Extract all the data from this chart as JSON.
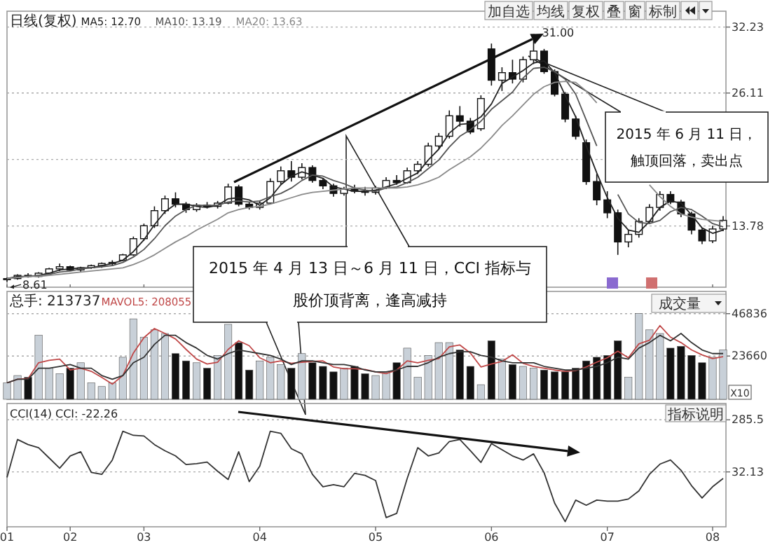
{
  "chart_data": [
    {
      "type": "candlestick",
      "title": "日线(复权)",
      "legend": "top left",
      "grid": "y",
      "tick_labels": "y",
      "categories": [
        "01",
        null,
        null,
        null,
        null,
        null,
        "02",
        null,
        null,
        null,
        null,
        null,
        null,
        "03",
        null,
        null,
        null,
        null,
        null,
        null,
        null,
        null,
        null,
        null,
        "04",
        null,
        null,
        null,
        null,
        null,
        null,
        null,
        null,
        null,
        null,
        "05",
        null,
        null,
        null,
        null,
        null,
        null,
        null,
        null,
        null,
        null,
        "06",
        null,
        null,
        null,
        null,
        null,
        null,
        null,
        null,
        null,
        null,
        "07",
        null,
        null,
        null,
        null,
        null,
        null,
        null,
        null,
        null,
        "08",
        null
      ],
      "ylim": [
        8.1,
        33.7
      ],
      "yticks": [
        32.23,
        26.11,
        {
          "value": 19.95,
          "label": null
        },
        13.78
      ],
      "ohlc": [
        [
          8.8,
          9.0,
          8.61,
          8.9
        ],
        [
          8.9,
          9.3,
          8.8,
          9.2
        ],
        [
          9.2,
          9.4,
          9.0,
          9.1
        ],
        [
          9.1,
          9.5,
          9.0,
          9.4
        ],
        [
          9.4,
          9.9,
          9.3,
          9.8
        ],
        [
          9.8,
          10.3,
          9.6,
          10.0
        ],
        [
          10.0,
          10.1,
          9.6,
          9.7
        ],
        [
          9.7,
          10.0,
          9.5,
          9.9
        ],
        [
          9.9,
          10.2,
          9.8,
          10.1
        ],
        [
          10.1,
          10.4,
          9.9,
          10.3
        ],
        [
          10.3,
          10.6,
          10.1,
          10.4
        ],
        [
          10.6,
          11.2,
          10.5,
          11.1
        ],
        [
          11.1,
          12.8,
          11.0,
          12.6
        ],
        [
          12.6,
          14.0,
          12.4,
          13.8
        ],
        [
          13.8,
          15.6,
          13.6,
          15.2
        ],
        [
          15.2,
          16.6,
          14.9,
          16.3
        ],
        [
          16.3,
          16.9,
          15.5,
          15.8
        ],
        [
          15.8,
          16.0,
          15.0,
          15.3
        ],
        [
          15.3,
          15.9,
          15.1,
          15.7
        ],
        [
          15.7,
          16.0,
          15.4,
          15.6
        ],
        [
          15.6,
          16.1,
          15.4,
          15.9
        ],
        [
          15.9,
          17.7,
          15.8,
          17.4
        ],
        [
          17.4,
          17.6,
          15.6,
          15.8
        ],
        [
          15.8,
          16.0,
          15.3,
          15.5
        ],
        [
          15.5,
          16.1,
          15.3,
          15.9
        ],
        [
          15.9,
          18.2,
          15.8,
          17.9
        ],
        [
          17.9,
          19.3,
          17.6,
          18.9
        ],
        [
          18.9,
          19.8,
          17.9,
          18.3
        ],
        [
          18.3,
          19.6,
          18.1,
          19.2
        ],
        [
          19.2,
          19.4,
          17.8,
          18.0
        ],
        [
          18.0,
          18.2,
          17.2,
          17.5
        ],
        [
          17.5,
          17.7,
          16.5,
          16.8
        ],
        [
          16.8,
          17.4,
          16.6,
          17.2
        ],
        [
          17.2,
          17.6,
          16.8,
          17.0
        ],
        [
          17.0,
          17.4,
          16.6,
          16.9
        ],
        [
          16.9,
          17.5,
          16.7,
          17.3
        ],
        [
          17.3,
          18.3,
          17.2,
          18.0
        ],
        [
          18.0,
          18.5,
          17.6,
          17.8
        ],
        [
          17.8,
          19.2,
          17.7,
          18.9
        ],
        [
          18.9,
          19.8,
          18.6,
          19.5
        ],
        [
          19.5,
          21.5,
          19.3,
          21.2
        ],
        [
          21.2,
          22.4,
          20.9,
          22.1
        ],
        [
          22.1,
          24.5,
          21.9,
          24.0
        ],
        [
          24.0,
          24.9,
          23.0,
          23.5
        ],
        [
          23.5,
          23.8,
          22.3,
          22.5
        ],
        [
          22.8,
          25.9,
          22.6,
          25.6
        ],
        [
          30.2,
          30.7,
          26.8,
          27.3
        ],
        [
          27.3,
          28.5,
          26.3,
          28.0
        ],
        [
          28.0,
          29.2,
          27.0,
          27.4
        ],
        [
          27.4,
          29.5,
          27.1,
          29.2
        ],
        [
          29.2,
          31.0,
          28.8,
          30.0
        ],
        [
          30.0,
          30.2,
          27.9,
          28.1
        ],
        [
          28.1,
          28.3,
          25.8,
          26.0
        ],
        [
          26.0,
          26.2,
          23.4,
          23.7
        ],
        [
          23.7,
          24.0,
          21.8,
          22.1
        ],
        [
          21.5,
          21.8,
          17.6,
          17.9
        ],
        [
          17.9,
          18.6,
          15.7,
          16.2
        ],
        [
          16.2,
          17.0,
          14.5,
          15.0
        ],
        [
          15.0,
          15.3,
          11.1,
          12.3
        ],
        [
          12.3,
          13.4,
          11.8,
          13.0
        ],
        [
          13.0,
          14.5,
          12.7,
          14.2
        ],
        [
          14.2,
          15.8,
          14.0,
          15.5
        ],
        [
          15.5,
          17.0,
          15.2,
          16.7
        ],
        [
          16.7,
          17.0,
          15.8,
          16.0
        ],
        [
          16.0,
          16.2,
          14.6,
          14.9
        ],
        [
          14.9,
          15.1,
          13.0,
          13.4
        ],
        [
          13.4,
          13.6,
          12.1,
          12.4
        ],
        [
          12.4,
          13.8,
          12.2,
          13.5
        ],
        [
          13.5,
          14.7,
          13.3,
          14.3
        ]
      ],
      "series": [
        {
          "type": "line",
          "name": "MA5: 12.70",
          "color": "#222222",
          "values": [
            8.9,
            9.1,
            9.1,
            9.2,
            9.4,
            9.7,
            9.8,
            9.9,
            9.9,
            10.1,
            10.3,
            10.6,
            11.4,
            12.5,
            13.9,
            15.1,
            15.8,
            15.8,
            15.6,
            15.5,
            15.7,
            16.3,
            16.4,
            16.2,
            15.7,
            16.4,
            17.6,
            18.4,
            18.8,
            18.5,
            18.2,
            17.4,
            17.2,
            17.0,
            17.0,
            17.1,
            17.4,
            17.7,
            18.2,
            18.7,
            19.9,
            20.9,
            22.4,
            23.2,
            23.3,
            23.9,
            25.1,
            27.0,
            27.6,
            28.2,
            28.9,
            29.1,
            28.0,
            25.9,
            23.9,
            21.2,
            18.7,
            16.4,
            14.5,
            13.4,
            13.2,
            14.2,
            15.5,
            16.1,
            15.9,
            14.8,
            13.6,
            13.1,
            13.4
          ]
        },
        {
          "type": "line",
          "name": "MA10: 13.19",
          "color": "#555555",
          "values": [
            8.9,
            9.0,
            9.1,
            9.2,
            9.3,
            9.5,
            9.6,
            9.8,
            9.9,
            10.0,
            10.1,
            10.4,
            10.9,
            11.6,
            12.6,
            13.8,
            14.7,
            15.3,
            15.7,
            15.7,
            15.7,
            16.0,
            16.1,
            16.0,
            16.1,
            16.5,
            16.8,
            17.3,
            18.0,
            18.5,
            18.4,
            18.0,
            17.7,
            17.3,
            17.1,
            17.0,
            17.3,
            17.4,
            17.8,
            18.3,
            19.1,
            19.9,
            21.1,
            22.1,
            22.7,
            23.5,
            24.6,
            25.4,
            26.2,
            27.5,
            28.4,
            28.5,
            28.1,
            27.4,
            26.0,
            23.6,
            21.2,
            null,
            16.7,
            14.9,
            14.1,
            14.0,
            14.3,
            15.1,
            15.5,
            15.3,
            14.7,
            14.0,
            13.7
          ]
        },
        {
          "type": "line",
          "name": "MA20: 13.63",
          "color": "#8a8a8a",
          "values": [
            8.9,
            9.0,
            9.1,
            9.1,
            9.2,
            9.3,
            9.4,
            9.5,
            9.6,
            9.7,
            9.8,
            9.9,
            10.2,
            10.6,
            11.1,
            11.7,
            12.3,
            12.8,
            13.4,
            13.9,
            14.4,
            15.0,
            15.3,
            15.5,
            15.6,
            15.8,
            16.1,
            16.4,
            16.7,
            16.9,
            17.0,
            17.1,
            17.2,
            17.3,
            17.3,
            17.3,
            17.3,
            17.3,
            17.4,
            17.6,
            17.9,
            18.3,
            19.0,
            19.6,
            20.2,
            21.0,
            22.0,
            23.1,
            24.0,
            25.0,
            26.0,
            26.7,
            27.1,
            27.2,
            27.1,
            26.3,
            25.2,
            null,
            null,
            null,
            null,
            17.6,
            16.5,
            15.6,
            14.9,
            14.6,
            14.4,
            14.3,
            14.2
          ]
        }
      ],
      "annotations": [
        "加自选",
        "均线",
        "复权",
        "叠",
        "窗",
        "标制",
        "2015 年 6 月 11 日，触顶回落，卖出点",
        "2015 年 4 月 13 日～6 月 11 日，CCI 指标与股价顶背离，逢高减持",
        "31.00",
        "8.61"
      ]
    },
    {
      "type": "bar",
      "title": "总手: 213737",
      "legend": "top left",
      "grid": "y",
      "tick_labels": "y",
      "categories": [
        "01",
        null,
        null,
        null,
        null,
        null,
        "02",
        null,
        null,
        null,
        null,
        null,
        null,
        "03",
        null,
        null,
        null,
        null,
        null,
        null,
        null,
        null,
        null,
        null,
        "04",
        null,
        null,
        null,
        null,
        null,
        null,
        null,
        null,
        null,
        null,
        "05",
        null,
        null,
        null,
        null,
        null,
        null,
        null,
        null,
        null,
        null,
        "06",
        null,
        null,
        null,
        null,
        null,
        null,
        null,
        null,
        null,
        null,
        "07",
        null,
        null,
        null,
        null,
        null,
        null,
        null,
        null,
        null,
        "08",
        null
      ],
      "ylim": [
        0,
        59000
      ],
      "yticks": [
        46836,
        23660
      ],
      "values": [
        9000,
        13000,
        12000,
        35000,
        17000,
        14000,
        17000,
        20000,
        9000,
        7000,
        9000,
        23000,
        44000,
        34000,
        38000,
        36000,
        25000,
        21000,
        20000,
        17000,
        24000,
        41000,
        31000,
        16000,
        21000,
        23000,
        19000,
        17000,
        25000,
        20000,
        18000,
        15000,
        17000,
        18000,
        14000,
        13000,
        15000,
        20000,
        28000,
        12000,
        24000,
        31000,
        31000,
        27000,
        18000,
        8000,
        32000,
        22000,
        19000,
        18000,
        17000,
        16000,
        15000,
        15000,
        17000,
        21000,
        23000,
        24000,
        32000,
        12000,
        47000,
        38000,
        36000,
        28000,
        29000,
        24000,
        20000,
        23000,
        27000
      ],
      "colors": [
        "#c8d0d8",
        "#c8d0d8",
        "#111111",
        "#c8d0d8",
        "#c8d0d8",
        "#c8d0d8",
        "#111111",
        "#c8d0d8",
        "#c8d0d8",
        "#c8d0d8",
        "#c8d0d8",
        "#c8d0d8",
        "#c8d0d8",
        "#c8d0d8",
        "#c8d0d8",
        "#c8d0d8",
        "#111111",
        "#111111",
        "#c8d0d8",
        "#111111",
        "#c8d0d8",
        "#c8d0d8",
        "#111111",
        "#111111",
        "#c8d0d8",
        "#c8d0d8",
        "#c8d0d8",
        "#111111",
        "#c8d0d8",
        "#111111",
        "#111111",
        "#111111",
        "#c8d0d8",
        "#111111",
        "#111111",
        "#c8d0d8",
        "#c8d0d8",
        "#111111",
        "#c8d0d8",
        "#c8d0d8",
        "#c8d0d8",
        "#c8d0d8",
        "#c8d0d8",
        "#111111",
        "#111111",
        "#c8d0d8",
        "#111111",
        "#c8d0d8",
        "#111111",
        "#c8d0d8",
        "#c8d0d8",
        "#111111",
        "#111111",
        "#111111",
        "#111111",
        "#111111",
        "#111111",
        "#111111",
        "#111111",
        "#c8d0d8",
        "#c8d0d8",
        "#c8d0d8",
        "#c8d0d8",
        "#111111",
        "#111111",
        "#111111",
        "#111111",
        "#c8d0d8",
        "#c8d0d8"
      ],
      "series": [
        {
          "type": "line",
          "name": "MAVOL5: 208055",
          "color": "#c04848",
          "values": [
            9000,
            11000,
            11300,
            20000,
            21300,
            22000,
            16000,
            17000,
            15300,
            12000,
            8300,
            13000,
            25300,
            33700,
            38700,
            36000,
            33000,
            27300,
            22000,
            19300,
            20300,
            27300,
            32000,
            29300,
            22700,
            20000,
            21000,
            19700,
            20300,
            20700,
            21000,
            17700,
            16700,
            16700,
            16300,
            15000,
            14000,
            16000,
            21000,
            20000,
            21300,
            22300,
            28700,
            29700,
            25300,
            17700,
            19300,
            20700,
            24300,
            19700,
            18000,
            17000,
            16000,
            15300,
            15700,
            17700,
            20300,
            22700,
            26300,
            22700,
            30300,
            32300,
            40300,
            34000,
            31000,
            27000,
            24300,
            22300,
            23300
          ]
        },
        {
          "type": "line",
          "color": "#333333",
          "values": [
            9000,
            11000,
            11000,
            17000,
            17000,
            18000,
            19000,
            17000,
            17000,
            13000,
            11000,
            13000,
            20000,
            23000,
            30000,
            35000,
            35000,
            31000,
            28000,
            24000,
            22000,
            25000,
            27000,
            26000,
            25000,
            24000,
            22000,
            19000,
            21000,
            21000,
            20000,
            19000,
            19000,
            18000,
            16000,
            15000,
            15000,
            16000,
            18000,
            18000,
            20000,
            23000,
            25000,
            26000,
            26000,
            24000,
            23000,
            21000,
            20000,
            20000,
            20000,
            18000,
            17000,
            16000,
            16000,
            17000,
            18000,
            20000,
            23000,
            22000,
            28000,
            31000,
            35000,
            32000,
            36000,
            31000,
            27000,
            25000,
            25000
          ]
        }
      ],
      "annotations": [
        "成交量",
        "X10"
      ]
    },
    {
      "type": "line",
      "title": "CCI(14) CCI: -22.26",
      "grid": "y",
      "categories": [
        "01",
        null,
        null,
        null,
        null,
        null,
        "02",
        null,
        null,
        null,
        null,
        null,
        null,
        "03",
        null,
        null,
        null,
        null,
        null,
        null,
        null,
        null,
        null,
        null,
        "04",
        null,
        null,
        null,
        null,
        null,
        null,
        null,
        null,
        null,
        null,
        "05",
        null,
        null,
        null,
        null,
        null,
        null,
        null,
        null,
        null,
        null,
        "06",
        null,
        null,
        null,
        null,
        null,
        null,
        null,
        null,
        null,
        null,
        "07",
        null,
        null,
        null,
        null,
        null,
        null,
        null,
        null,
        null,
        "08",
        null
      ],
      "ylim": [
        -235,
        365
      ],
      "yticks": [
        285.5,
        32.13
      ],
      "series": [
        {
          "color": "#333333",
          "values": [
            5,
            190,
            165,
            150,
            100,
            50,
            110,
            130,
            30,
            20,
            90,
            230,
            210,
            207,
            165,
            135,
            110,
            68,
            72,
            80,
            35,
            -5,
            130,
            -15,
            60,
            230,
            220,
            145,
            120,
            20,
            -40,
            -30,
            -40,
            25,
            15,
            -10,
            -190,
            -170,
            0,
            150,
            110,
            124,
            180,
            190,
            135,
            78,
            170,
            140,
            110,
            90,
            120,
            28,
            -120,
            -210,
            -105,
            -130,
            -105,
            -110,
            -110,
            -100,
            -60,
            20,
            70,
            90,
            40,
            -35,
            -95,
            -40,
            0
          ]
        }
      ],
      "annotations": [
        "指标说明"
      ]
    }
  ]
}
